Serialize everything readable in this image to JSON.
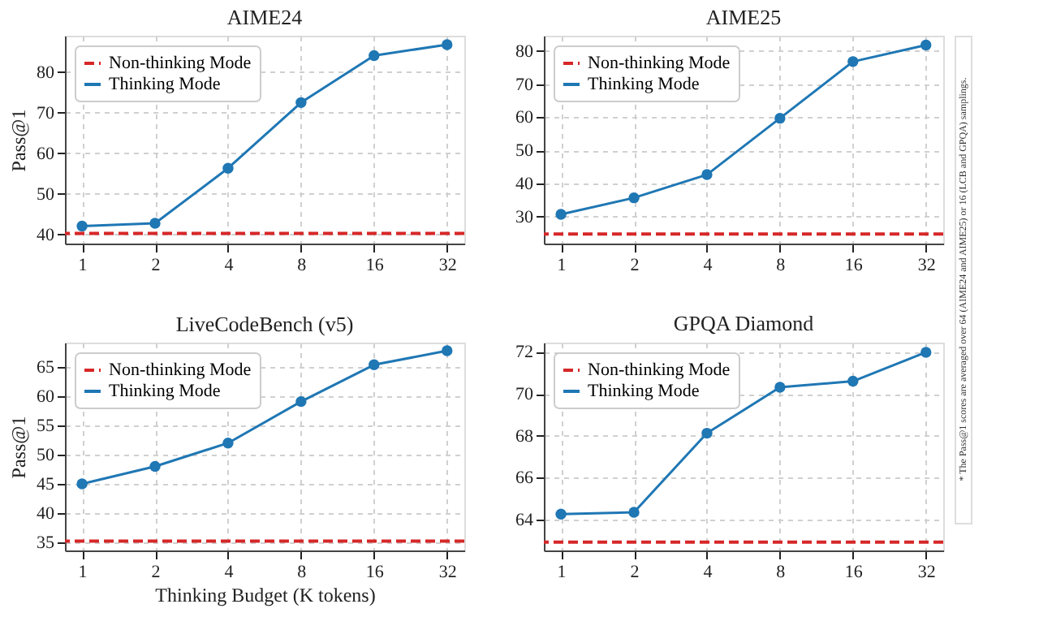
{
  "chart_data": [
    {
      "type": "line",
      "title": "AIME24",
      "ylabel": "Pass@1",
      "x": [
        1,
        2,
        4,
        8,
        16,
        32
      ],
      "log": "x",
      "xlim": [
        0.85,
        37.7
      ],
      "xticks": [
        1,
        2,
        4,
        8,
        16,
        32
      ],
      "ylim": [
        37.7,
        89
      ],
      "yticks": [
        40,
        50,
        60,
        70,
        80
      ],
      "grid": true,
      "legend": "top left",
      "marker": "circle",
      "line_style": "solid",
      "series": [
        {
          "name": "Thinking Mode",
          "color": "#1f77b4",
          "values": [
            42.0,
            42.7,
            56.3,
            72.5,
            84.1,
            86.8
          ]
        }
      ],
      "ref_lines": [
        {
          "axis": "y",
          "value": 40.2,
          "label": "Non-thinking Mode",
          "color": "#d62728",
          "line_style": "dashed"
        }
      ]
    },
    {
      "type": "line",
      "title": "AIME25",
      "x": [
        1,
        2,
        4,
        8,
        16,
        32
      ],
      "log": "x",
      "xlim": [
        0.85,
        37.7
      ],
      "xticks": [
        1,
        2,
        4,
        8,
        16,
        32
      ],
      "ylim": [
        21.9,
        84.6
      ],
      "yticks": [
        30,
        40,
        50,
        60,
        70,
        80
      ],
      "grid": true,
      "legend": "top left",
      "marker": "circle",
      "line_style": "solid",
      "series": [
        {
          "name": "Thinking Mode",
          "color": "#1f77b4",
          "values": [
            30.7,
            35.7,
            42.7,
            59.7,
            76.8,
            81.8
          ]
        }
      ],
      "ref_lines": [
        {
          "axis": "y",
          "value": 24.8,
          "label": "Non-thinking Mode",
          "color": "#d62728",
          "line_style": "dashed"
        }
      ],
      "annotations": [
        "* The Pass@1 scores are averaged over 64 (AIME24 and AIME25) or 16 (LCB and GPQA) samplings."
      ]
    },
    {
      "type": "line",
      "title": "LiveCodeBench (v5)",
      "xlabel": "Thinking Budget (K tokens)",
      "ylabel": "Pass@1",
      "x": [
        1,
        2,
        4,
        8,
        16,
        32
      ],
      "log": "x",
      "xlim": [
        0.85,
        37.7
      ],
      "xticks": [
        1,
        2,
        4,
        8,
        16,
        32
      ],
      "ylim": [
        33.6,
        69.2
      ],
      "yticks": [
        35,
        40,
        45,
        50,
        55,
        60,
        65
      ],
      "grid": true,
      "legend": "top left",
      "marker": "circle",
      "line_style": "solid",
      "series": [
        {
          "name": "Thinking Mode",
          "color": "#1f77b4",
          "values": [
            45.0,
            48.0,
            52.0,
            59.1,
            65.4,
            67.8
          ]
        }
      ],
      "ref_lines": [
        {
          "axis": "y",
          "value": 35.2,
          "label": "Non-thinking Mode",
          "color": "#d62728",
          "line_style": "dashed"
        }
      ]
    },
    {
      "type": "line",
      "title": "GPQA Diamond",
      "x": [
        1,
        2,
        4,
        8,
        16,
        32
      ],
      "log": "x",
      "xlim": [
        0.85,
        37.7
      ],
      "xticks": [
        1,
        2,
        4,
        8,
        16,
        32
      ],
      "ylim": [
        62.53,
        72.44
      ],
      "yticks": [
        64,
        66,
        68,
        70,
        72
      ],
      "grid": true,
      "legend": "top left",
      "marker": "circle",
      "line_style": "solid",
      "series": [
        {
          "name": "Thinking Mode",
          "color": "#1f77b4",
          "values": [
            64.26,
            64.35,
            68.12,
            70.31,
            70.6,
            71.98
          ]
        }
      ],
      "ref_lines": [
        {
          "axis": "y",
          "value": 62.93,
          "label": "Non-thinking Mode",
          "color": "#d62728",
          "line_style": "dashed"
        }
      ]
    }
  ]
}
